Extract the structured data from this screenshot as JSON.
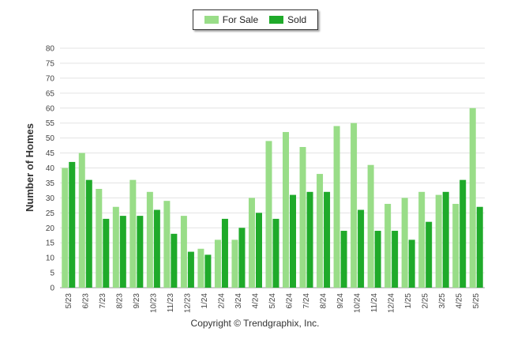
{
  "chart_data": {
    "type": "bar",
    "title": "",
    "xlabel": "",
    "ylabel": "Number of Homes",
    "ylim": [
      0,
      80
    ],
    "ytick_step": 5,
    "grid": true,
    "legend_position": "top-center",
    "categories": [
      "5/23",
      "6/23",
      "7/23",
      "8/23",
      "9/23",
      "10/23",
      "11/23",
      "12/23",
      "1/24",
      "2/24",
      "3/24",
      "4/24",
      "5/24",
      "6/24",
      "7/24",
      "8/24",
      "9/24",
      "10/24",
      "11/24",
      "12/24",
      "1/25",
      "2/25",
      "3/25",
      "4/25",
      "5/25"
    ],
    "series": [
      {
        "name": "For Sale",
        "color": "#99dd88",
        "values": [
          40,
          45,
          33,
          27,
          36,
          32,
          29,
          24,
          13,
          16,
          16,
          30,
          49,
          52,
          47,
          38,
          54,
          55,
          41,
          28,
          30,
          32,
          31,
          28,
          60
        ]
      },
      {
        "name": "Sold",
        "color": "#1faa2a",
        "values": [
          42,
          36,
          23,
          24,
          24,
          26,
          18,
          12,
          11,
          23,
          20,
          25,
          23,
          31,
          32,
          32,
          19,
          26,
          19,
          19,
          16,
          22,
          32,
          36,
          27
        ]
      }
    ]
  },
  "footer": {
    "copyright": "Copyright © Trendgraphix, Inc."
  }
}
